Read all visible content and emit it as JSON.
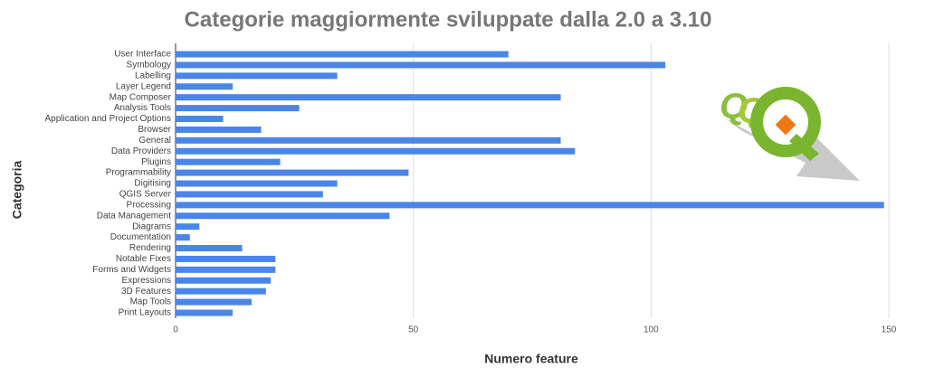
{
  "chart_data": {
    "type": "bar",
    "orientation": "horizontal",
    "title": "Categorie maggiormente sviluppate dalla 2.0 a 3.10",
    "x_label": "Numero feature",
    "y_label": "Categoria",
    "categories": [
      "User Interface",
      "Symbology",
      "Labelling",
      "Layer Legend",
      "Map Composer",
      "Analysis Tools",
      "Application and Project Options",
      "Browser",
      "General",
      "Data Providers",
      "Plugins",
      "Programmability",
      "Digitising",
      "QGIS Server",
      "Processing",
      "Data Management",
      "Diagrams",
      "Documentation",
      "Rendering",
      "Notable Fixes",
      "Forms and Widgets",
      "Expressions",
      "3D Features",
      "Map Tools",
      "Print Layouts"
    ],
    "values": [
      70,
      103,
      34,
      12,
      81,
      26,
      10,
      18,
      81,
      84,
      22,
      49,
      34,
      31,
      149,
      45,
      5,
      3,
      14,
      21,
      21,
      20,
      19,
      16,
      12
    ],
    "color": "#4a86e8",
    "xlim": [
      0,
      150
    ],
    "xticks": [
      0,
      50,
      100,
      150
    ],
    "grid": true
  }
}
